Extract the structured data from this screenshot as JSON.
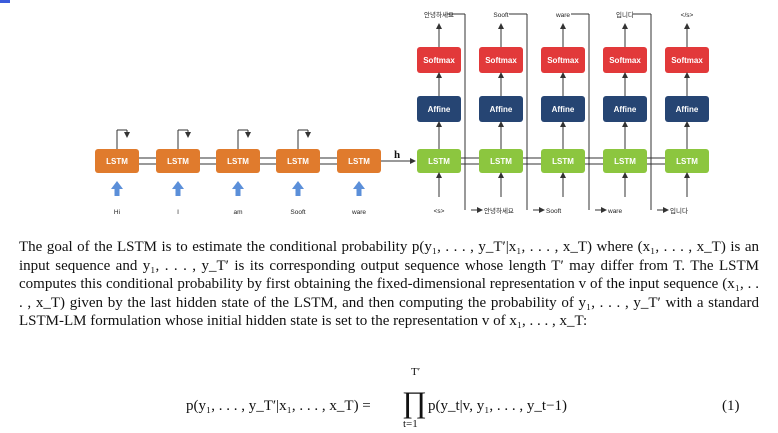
{
  "colors": {
    "encoder": "#e07b2d",
    "decoder": "#8cc63f",
    "affine": "#264573",
    "softmax": "#e2393a",
    "input_arrow": "#5b8fd9"
  },
  "encoder": {
    "box_label": "LSTM",
    "inputs": [
      "Hi",
      "I",
      "am",
      "Sooft",
      "ware"
    ]
  },
  "hidden_label": "h",
  "decoder": {
    "lstm_label": "LSTM",
    "affine_label": "Affine",
    "softmax_label": "Softmax",
    "inputs": [
      "<s>",
      "안녕하세요",
      "Sooft",
      "ware",
      "입니다"
    ],
    "outputs": [
      "안녕하세요",
      "Sooft",
      "ware",
      "입니다",
      "</s>"
    ]
  },
  "paragraph": "The goal of the LSTM is to estimate the conditional probability p(y₁, . . . , y_T′|x₁, . . . , x_T) where (x₁, . . . , x_T) is an input sequence and y₁, . . . , y_T′ is its corresponding output sequence whose length T′ may differ from T. The LSTM computes this conditional probability by first obtaining the fixed-dimensional representation v of the input sequence (x₁, . . . , x_T) given by the last hidden state of the LSTM, and then computing the probability of y₁, . . . , y_T′ with a standard LSTM-LM formulation whose initial hidden state is set to the representation v of x₁, . . . , x_T:",
  "equation": {
    "lhs": "p(y₁, . . . , y_T′|x₁, . . . , x_T) =",
    "product_upper": "T′",
    "product_symbol": "∏",
    "product_lower": "t=1",
    "rhs": "p(y_t|v, y₁, . . . , y_t−1)",
    "number": "(1)"
  }
}
